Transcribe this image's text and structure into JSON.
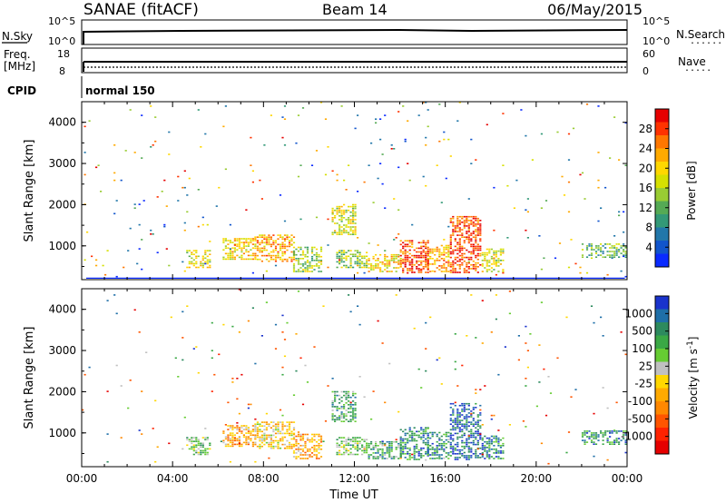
{
  "header": {
    "station": "SANAE (fitACF)",
    "beam": "Beam 14",
    "date": "06/May/2015"
  },
  "panels": {
    "nsky": {
      "label": "N.Sky",
      "tick_top": "10^5",
      "tick_bottom": "10^0",
      "right_tick_top": "10^5",
      "right_tick_bottom": "10^0",
      "right_label": "N.Search",
      "right_label_dots": "......"
    },
    "freq": {
      "label_line1": "Freq.",
      "label_line2": "[MHz]",
      "tick_top": "18",
      "tick_bottom": "8",
      "right_tick_top": "60",
      "right_tick_bottom": "0",
      "right_label": "Nave",
      "right_label_dots": "....."
    },
    "cpid": {
      "label": "CPID",
      "text": "normal 150"
    }
  },
  "chart_data": [
    {
      "type": "heatmap",
      "name": "Power",
      "ylabel": "Slant Range [km]",
      "xlabel": "",
      "xlim": [
        0,
        24
      ],
      "ylim": [
        180,
        4500
      ],
      "x_ticks": [
        "00:00",
        "04:00",
        "08:00",
        "12:00",
        "16:00",
        "20:00",
        "00:00"
      ],
      "y_ticks": [
        1000,
        2000,
        3000,
        4000
      ],
      "colorbar": {
        "label": "Power [dB]",
        "ticks": [
          "28",
          "24",
          "20",
          "16",
          "12",
          "8",
          "4"
        ],
        "colors": [
          "#e60000",
          "#ff3300",
          "#ff7700",
          "#ffaa00",
          "#ffd700",
          "#d6e000",
          "#99cc33",
          "#55aa55",
          "#339977",
          "#2277aa",
          "#1155cc",
          "#0a2aff"
        ]
      },
      "regions": [
        {
          "start": 4.6,
          "end": 5.6,
          "rmin": 450,
          "rmax": 900,
          "level": 6
        },
        {
          "start": 6.2,
          "end": 7.6,
          "rmin": 650,
          "rmax": 1150,
          "level": 7
        },
        {
          "start": 7.6,
          "end": 9.3,
          "rmin": 600,
          "rmax": 1250,
          "level": 8
        },
        {
          "start": 9.3,
          "end": 10.5,
          "rmin": 350,
          "rmax": 950,
          "level": 5
        },
        {
          "start": 11.0,
          "end": 12.0,
          "rmin": 1250,
          "rmax": 2000,
          "level": 6
        },
        {
          "start": 11.2,
          "end": 12.5,
          "rmin": 450,
          "rmax": 900,
          "level": 5
        },
        {
          "start": 12.6,
          "end": 14.0,
          "rmin": 350,
          "rmax": 800,
          "level": 7
        },
        {
          "start": 14.0,
          "end": 15.2,
          "rmin": 330,
          "rmax": 1100,
          "level": 10
        },
        {
          "start": 15.2,
          "end": 16.2,
          "rmin": 350,
          "rmax": 1000,
          "level": 8
        },
        {
          "start": 16.2,
          "end": 17.6,
          "rmin": 330,
          "rmax": 1700,
          "level": 10
        },
        {
          "start": 17.6,
          "end": 18.6,
          "rmin": 350,
          "rmax": 900,
          "level": 6
        },
        {
          "start": 22.0,
          "end": 24.0,
          "rmin": 700,
          "rmax": 1050,
          "level": 4
        },
        {
          "start": 0.0,
          "end": 24.0,
          "rmin": 180,
          "rmax": 4500,
          "level": 3,
          "density": 0.012
        }
      ]
    },
    {
      "type": "heatmap",
      "name": "Velocity",
      "ylabel": "Slant Range [km]",
      "xlabel": "Time UT",
      "xlim": [
        0,
        24
      ],
      "ylim": [
        180,
        4500
      ],
      "x_ticks": [
        "00:00",
        "04:00",
        "08:00",
        "12:00",
        "16:00",
        "20:00",
        "00:00"
      ],
      "y_ticks": [
        1000,
        2000,
        3000,
        4000
      ],
      "colorbar": {
        "label": "Velocity [m s^-1]",
        "ticks": [
          "1000",
          "500",
          "100",
          "25",
          "-25",
          "-100",
          "-500",
          "-1000"
        ],
        "colors": [
          "#1a33cc",
          "#1f6fa8",
          "#2d8a5e",
          "#3aa845",
          "#66cc33",
          "#c0c0c0",
          "#ffd700",
          "#ffaa00",
          "#ff8800",
          "#ff5500",
          "#ff2200",
          "#e60000"
        ]
      },
      "regions": [
        {
          "start": 4.6,
          "end": 5.6,
          "rmin": 450,
          "rmax": 900,
          "level": 7
        },
        {
          "start": 6.2,
          "end": 7.6,
          "rmin": 650,
          "rmax": 1150,
          "level": 4
        },
        {
          "start": 7.6,
          "end": 9.3,
          "rmin": 600,
          "rmax": 1250,
          "level": 5
        },
        {
          "start": 9.3,
          "end": 10.5,
          "rmin": 350,
          "rmax": 950,
          "level": 4
        },
        {
          "start": 11.0,
          "end": 12.0,
          "rmin": 1250,
          "rmax": 2000,
          "level": 8
        },
        {
          "start": 11.2,
          "end": 12.5,
          "rmin": 450,
          "rmax": 900,
          "level": 7
        },
        {
          "start": 12.6,
          "end": 14.0,
          "rmin": 350,
          "rmax": 800,
          "level": 8
        },
        {
          "start": 14.0,
          "end": 15.2,
          "rmin": 330,
          "rmax": 1100,
          "level": 9
        },
        {
          "start": 15.2,
          "end": 16.2,
          "rmin": 350,
          "rmax": 1000,
          "level": 9
        },
        {
          "start": 16.2,
          "end": 17.6,
          "rmin": 330,
          "rmax": 1700,
          "level": 10
        },
        {
          "start": 17.6,
          "end": 18.6,
          "rmin": 350,
          "rmax": 900,
          "level": 9
        },
        {
          "start": 22.0,
          "end": 24.0,
          "rmin": 700,
          "rmax": 1050,
          "level": 9
        },
        {
          "start": 0.0,
          "end": 24.0,
          "rmin": 180,
          "rmax": 4500,
          "level": 7,
          "density": 0.01
        }
      ]
    }
  ]
}
